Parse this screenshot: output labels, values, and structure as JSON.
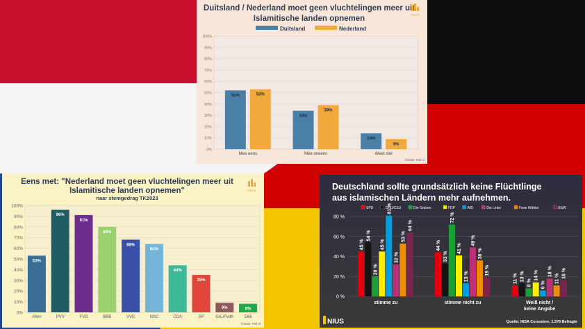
{
  "brand": {
    "peil_logo_text": "Peil.nl",
    "nius_logo": "NIUS"
  },
  "colors": {
    "blue": "#4a7fa8",
    "orange": "#f2a93b"
  },
  "chart_data": [
    {
      "id": "top",
      "type": "bar",
      "title_line1": "Duitsland / Nederland moet geen vluchtelingen meer uit",
      "title_line2": "Islamitische landen opnemen",
      "legend": "top",
      "categories": [
        "Mee eens",
        "Mee oneens",
        "Weet niet"
      ],
      "series": [
        {
          "name": "Duitsland",
          "values": [
            52,
            34,
            14
          ],
          "color": "#4a7fa8"
        },
        {
          "name": "Nederland",
          "values": [
            53,
            39,
            9
          ],
          "color": "#f2a93b"
        }
      ],
      "value_labels": [
        [
          "52%",
          "34%",
          "14%"
        ],
        [
          "53%",
          "39%",
          "9%"
        ]
      ],
      "yticks": [
        "0%",
        "10%",
        "20%",
        "30%",
        "40%",
        "50%",
        "60%",
        "70%",
        "80%",
        "90%",
        "100%"
      ],
      "ylim": [
        0,
        100
      ],
      "grid": true,
      "footer": "©2025- Peil.nl"
    },
    {
      "id": "left",
      "type": "bar",
      "title_line1": "Eens met: \"Nederland moet geen vluchtelingen meer uit",
      "title_line2": "Islamitische landen opnemen\"",
      "subtitle": "naar stemgedrag TK2023",
      "categories": [
        "Allen",
        "PVV",
        "FVD",
        "BBB",
        "VVD",
        "NSC",
        "CDA",
        "SP",
        "GrL/PvdA",
        "D66"
      ],
      "values": [
        53,
        96,
        91,
        80,
        68,
        64,
        44,
        35,
        9,
        8
      ],
      "value_labels": [
        "53%",
        "96%",
        "91%",
        "80%",
        "68%",
        "64%",
        "44%",
        "35%",
        "9%",
        "8%"
      ],
      "colors": [
        "#3b6e96",
        "#1f5c63",
        "#6b2d8c",
        "#9ccf6e",
        "#3a4fa8",
        "#73b6d9",
        "#3fb89a",
        "#e0463a",
        "#8c5a5a",
        "#22a84a"
      ],
      "yticks": [
        "0%",
        "10%",
        "20%",
        "30%",
        "40%",
        "50%",
        "60%",
        "70%",
        "80%",
        "90%",
        "100%"
      ],
      "ylim": [
        0,
        100
      ],
      "grid": true,
      "footer": "©2025- Peil.nl"
    },
    {
      "id": "right",
      "type": "bar",
      "title_line1": "Deutschland sollte grundsätzlich keine Flüchtlinge",
      "title_line2": "aus islamischen Ländern mehr aufnehmen.",
      "legend": "top",
      "categories": [
        "stimme zu",
        "stimme nicht zu",
        "Weiß nicht /|keine Angabe"
      ],
      "category_line1": [
        "stimme zu",
        "stimme nicht zu",
        "Weiß nicht /"
      ],
      "category_line2": [
        "",
        "",
        "keine Angabe"
      ],
      "series": [
        {
          "name": "SPD",
          "values": [
            45,
            44,
            11
          ],
          "color": "#e3000f"
        },
        {
          "name": "CDU/CSU",
          "values": [
            54,
            33,
            13
          ],
          "color": "#151515"
        },
        {
          "name": "Die Grünen",
          "values": [
            20,
            72,
            8
          ],
          "color": "#1aa037"
        },
        {
          "name": "FDP",
          "values": [
            45,
            41,
            14
          ],
          "color": "#ffed00"
        },
        {
          "name": "AfD",
          "values": [
            81,
            13,
            6
          ],
          "color": "#009ee0"
        },
        {
          "name": "Die Linke",
          "values": [
            32,
            49,
            18
          ],
          "color": "#be3075"
        },
        {
          "name": "Freie Wähler",
          "values": [
            53,
            36,
            11
          ],
          "color": "#f08c00"
        },
        {
          "name": "BSW",
          "values": [
            64,
            19,
            16
          ],
          "color": "#7d254f"
        }
      ],
      "value_labels": [
        [
          "45 %",
          "44 %",
          "11 %"
        ],
        [
          "54 %",
          "33 %",
          "13 %"
        ],
        [
          "20 %",
          "72 %",
          "8 %"
        ],
        [
          "45 %",
          "41 %",
          "14 %"
        ],
        [
          "81 %",
          "13 %",
          "6 %"
        ],
        [
          "32 %",
          "49 %",
          "18 %"
        ],
        [
          "53 %",
          "36 %",
          "11 %"
        ],
        [
          "64 %",
          "19 %",
          "16 %"
        ]
      ],
      "yticks": [
        "0 %",
        "20 %",
        "40 %",
        "60 %",
        "80 %"
      ],
      "ylim": [
        0,
        80
      ],
      "grid": true,
      "source": "Quelle: INSA Consulere, 1.576 Befragte"
    }
  ]
}
